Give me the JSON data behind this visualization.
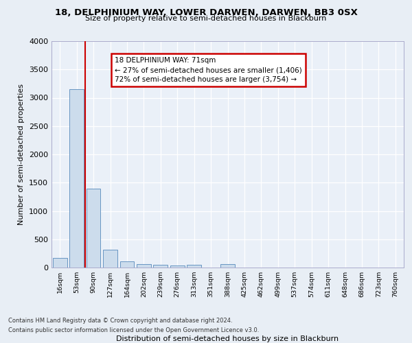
{
  "title1": "18, DELPHINIUM WAY, LOWER DARWEN, DARWEN, BB3 0SX",
  "title2": "Size of property relative to semi-detached houses in Blackburn",
  "xlabel": "Distribution of semi-detached houses by size in Blackburn",
  "ylabel": "Number of semi-detached properties",
  "bin_labels": [
    "16sqm",
    "53sqm",
    "90sqm",
    "127sqm",
    "164sqm",
    "202sqm",
    "239sqm",
    "276sqm",
    "313sqm",
    "351sqm",
    "388sqm",
    "425sqm",
    "462sqm",
    "499sqm",
    "537sqm",
    "574sqm",
    "611sqm",
    "648sqm",
    "686sqm",
    "723sqm",
    "760sqm"
  ],
  "bar_values": [
    175,
    3150,
    1400,
    320,
    110,
    65,
    50,
    40,
    50,
    0,
    55,
    0,
    0,
    0,
    0,
    0,
    0,
    0,
    0,
    0,
    0
  ],
  "bar_color": "#ccdcec",
  "bar_edge_color": "#5588bb",
  "annotation_text": "18 DELPHINIUM WAY: 71sqm\n← 27% of semi-detached houses are smaller (1,406)\n72% of semi-detached houses are larger (3,754) →",
  "annotation_box_color": "#ffffff",
  "annotation_box_edge": "#cc0000",
  "property_line_color": "#cc0000",
  "footer1": "Contains HM Land Registry data © Crown copyright and database right 2024.",
  "footer2": "Contains public sector information licensed under the Open Government Licence v3.0.",
  "ylim": [
    0,
    4000
  ],
  "background_color": "#e8eef5",
  "plot_background": "#eaf0f8",
  "property_line_xindex": 1.49
}
